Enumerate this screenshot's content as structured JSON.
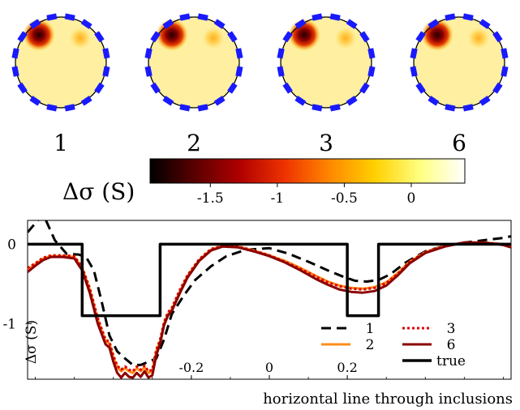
{
  "panels": [
    {
      "label": "1"
    },
    {
      "label": "2"
    },
    {
      "label": "3"
    },
    {
      "label": "6"
    }
  ],
  "colorbar": {
    "label": "Δσ  (S)",
    "range": [
      -1.95,
      0.4
    ],
    "ticks": [
      {
        "value": -1.5,
        "label": "-1.5"
      },
      {
        "value": -1,
        "label": "-1"
      },
      {
        "value": -0.5,
        "label": "-0.5"
      },
      {
        "value": 0,
        "label": "0"
      }
    ],
    "colormap": [
      "#000000",
      "#5a0000",
      "#b00000",
      "#ee3300",
      "#ff8800",
      "#ffd000",
      "#ffff80",
      "#ffffff"
    ]
  },
  "colors": {
    "electrode": "#1a1aff",
    "disk_background": "#fef0a0",
    "inclusion_strong": "#8b0000",
    "inclusion_weak": "#ffcf60"
  },
  "chart_data": {
    "type": "line",
    "xlabel": "horizontal line through inclusions",
    "ylabel": "Δσ (S)",
    "xlim": [
      -0.62,
      0.62
    ],
    "ylim": [
      -1.7,
      0.3
    ],
    "xticks": [
      {
        "value": -0.2,
        "label": "-0.2"
      },
      {
        "value": 0,
        "label": "0"
      },
      {
        "value": 0.2,
        "label": "0.2"
      }
    ],
    "yticks": [
      {
        "value": 0,
        "label": "0"
      },
      {
        "value": -1,
        "label": "-1"
      }
    ],
    "legend_position": "bottom-right",
    "series": [
      {
        "name": "1",
        "color": "#000000",
        "dash": "12 7",
        "width": 3,
        "x": [
          -0.62,
          -0.58,
          -0.55,
          -0.52,
          -0.49,
          -0.47,
          -0.45,
          -0.43,
          -0.41,
          -0.39,
          -0.37,
          -0.35,
          -0.33,
          -0.31,
          -0.29,
          -0.27,
          -0.25,
          -0.22,
          -0.19,
          -0.15,
          -0.11,
          -0.06,
          0,
          0.05,
          0.1,
          0.15,
          0.19,
          0.22,
          0.25,
          0.28,
          0.31,
          0.35,
          0.4,
          0.45,
          0.5,
          0.55,
          0.6,
          0.62
        ],
        "y": [
          0.15,
          0.38,
          0.05,
          -0.12,
          -0.13,
          -0.16,
          -0.33,
          -0.72,
          -1.15,
          -1.35,
          -1.44,
          -1.52,
          -1.52,
          -1.48,
          -1.44,
          -1.2,
          -0.88,
          -0.65,
          -0.45,
          -0.28,
          -0.15,
          -0.07,
          -0.05,
          -0.12,
          -0.22,
          -0.33,
          -0.41,
          -0.46,
          -0.47,
          -0.45,
          -0.38,
          -0.23,
          -0.09,
          -0.02,
          0.02,
          0.05,
          0.08,
          0.1
        ]
      },
      {
        "name": "2",
        "color": "#ff8c1a",
        "dash": "",
        "width": 3,
        "x": [
          -0.62,
          -0.6,
          -0.58,
          -0.56,
          -0.53,
          -0.5,
          -0.48,
          -0.46,
          -0.44,
          -0.42,
          -0.41,
          -0.4,
          -0.39,
          -0.38,
          -0.37,
          -0.36,
          -0.35,
          -0.34,
          -0.33,
          -0.32,
          -0.31,
          -0.3,
          -0.29,
          -0.28,
          -0.27,
          -0.26,
          -0.25,
          -0.23,
          -0.21,
          -0.18,
          -0.15,
          -0.12,
          -0.08,
          -0.04,
          0,
          0.04,
          0.08,
          0.12,
          0.15,
          0.18,
          0.21,
          0.24,
          0.27,
          0.3,
          0.33,
          0.36,
          0.4,
          0.45,
          0.5,
          0.55,
          0.6,
          0.62
        ],
        "y": [
          -0.32,
          -0.25,
          -0.18,
          -0.15,
          -0.15,
          -0.16,
          -0.3,
          -0.58,
          -0.95,
          -1.22,
          -1.25,
          -1.42,
          -1.55,
          -1.6,
          -1.56,
          -1.6,
          -1.62,
          -1.56,
          -1.6,
          -1.55,
          -1.62,
          -1.6,
          -1.35,
          -1.22,
          -1.0,
          -0.88,
          -0.82,
          -0.6,
          -0.4,
          -0.2,
          -0.07,
          -0.02,
          -0.03,
          -0.08,
          -0.14,
          -0.21,
          -0.3,
          -0.4,
          -0.47,
          -0.52,
          -0.55,
          -0.56,
          -0.54,
          -0.48,
          -0.36,
          -0.22,
          -0.1,
          -0.02,
          0.02,
          0.02,
          0.0,
          -0.02
        ]
      },
      {
        "name": "3",
        "color": "#e00000",
        "dash": "3 3",
        "width": 3,
        "x": [
          -0.62,
          -0.6,
          -0.58,
          -0.56,
          -0.53,
          -0.5,
          -0.48,
          -0.46,
          -0.44,
          -0.42,
          -0.41,
          -0.4,
          -0.39,
          -0.38,
          -0.37,
          -0.36,
          -0.35,
          -0.34,
          -0.33,
          -0.32,
          -0.31,
          -0.3,
          -0.29,
          -0.28,
          -0.27,
          -0.26,
          -0.25,
          -0.23,
          -0.21,
          -0.18,
          -0.15,
          -0.12,
          -0.08,
          -0.04,
          0,
          0.04,
          0.08,
          0.12,
          0.15,
          0.18,
          0.21,
          0.24,
          0.27,
          0.3,
          0.33,
          0.36,
          0.4,
          0.45,
          0.5,
          0.55,
          0.6,
          0.62
        ],
        "y": [
          -0.3,
          -0.24,
          -0.17,
          -0.14,
          -0.14,
          -0.15,
          -0.29,
          -0.56,
          -0.93,
          -1.2,
          -1.23,
          -1.4,
          -1.53,
          -1.58,
          -1.54,
          -1.58,
          -1.6,
          -1.54,
          -1.58,
          -1.53,
          -1.6,
          -1.58,
          -1.33,
          -1.2,
          -0.98,
          -0.86,
          -0.8,
          -0.58,
          -0.39,
          -0.19,
          -0.06,
          -0.02,
          -0.03,
          -0.08,
          -0.14,
          -0.22,
          -0.31,
          -0.41,
          -0.48,
          -0.53,
          -0.56,
          -0.57,
          -0.55,
          -0.49,
          -0.37,
          -0.22,
          -0.1,
          -0.02,
          0.02,
          0.02,
          0.0,
          -0.02
        ]
      },
      {
        "name": "6",
        "color": "#8b0000",
        "dash": "",
        "width": 3,
        "x": [
          -0.62,
          -0.6,
          -0.58,
          -0.56,
          -0.53,
          -0.5,
          -0.48,
          -0.46,
          -0.44,
          -0.42,
          -0.41,
          -0.4,
          -0.39,
          -0.38,
          -0.37,
          -0.36,
          -0.35,
          -0.34,
          -0.33,
          -0.32,
          -0.31,
          -0.3,
          -0.29,
          -0.28,
          -0.27,
          -0.26,
          -0.25,
          -0.23,
          -0.21,
          -0.18,
          -0.15,
          -0.12,
          -0.08,
          -0.04,
          0,
          0.04,
          0.08,
          0.12,
          0.15,
          0.18,
          0.21,
          0.24,
          0.27,
          0.3,
          0.33,
          0.36,
          0.4,
          0.45,
          0.5,
          0.55,
          0.6,
          0.62
        ],
        "y": [
          -0.35,
          -0.27,
          -0.2,
          -0.16,
          -0.16,
          -0.18,
          -0.33,
          -0.62,
          -1.0,
          -1.26,
          -1.3,
          -1.48,
          -1.62,
          -1.68,
          -1.62,
          -1.67,
          -1.68,
          -1.62,
          -1.67,
          -1.6,
          -1.68,
          -1.65,
          -1.4,
          -1.25,
          -1.02,
          -0.9,
          -0.84,
          -0.62,
          -0.42,
          -0.21,
          -0.08,
          -0.03,
          -0.04,
          -0.09,
          -0.15,
          -0.23,
          -0.33,
          -0.44,
          -0.51,
          -0.57,
          -0.6,
          -0.61,
          -0.59,
          -0.52,
          -0.39,
          -0.24,
          -0.11,
          -0.03,
          0.02,
          0.02,
          -0.01,
          -0.04
        ]
      },
      {
        "name": "true",
        "color": "#000000",
        "dash": "",
        "width": 3.5,
        "x": [
          -0.62,
          -0.48,
          -0.48,
          -0.28,
          -0.28,
          0.2,
          0.2,
          0.28,
          0.28,
          0.62
        ],
        "y": [
          0,
          0,
          -0.9,
          -0.9,
          0,
          0,
          -0.9,
          -0.9,
          0,
          0
        ]
      }
    ]
  }
}
